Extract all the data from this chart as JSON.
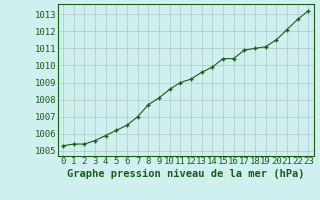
{
  "x": [
    0,
    1,
    2,
    3,
    4,
    5,
    6,
    7,
    8,
    9,
    10,
    11,
    12,
    13,
    14,
    15,
    16,
    17,
    18,
    19,
    20,
    21,
    22,
    23
  ],
  "y": [
    1005.3,
    1005.4,
    1005.4,
    1005.6,
    1005.9,
    1006.2,
    1006.5,
    1007.0,
    1007.7,
    1008.1,
    1008.6,
    1009.0,
    1009.2,
    1009.6,
    1009.9,
    1010.4,
    1010.4,
    1010.9,
    1011.0,
    1011.1,
    1011.5,
    1012.1,
    1012.7,
    1013.2
  ],
  "line_color": "#1a5c1a",
  "marker_color": "#1a5c1a",
  "bg_color": "#cff0ee",
  "grid_color": "#b0c8c8",
  "ylabel_ticks": [
    1005,
    1006,
    1007,
    1008,
    1009,
    1010,
    1011,
    1012,
    1013
  ],
  "xlabel": "Graphe pression niveau de la mer (hPa)",
  "xlim": [
    -0.5,
    23.5
  ],
  "ylim": [
    1004.7,
    1013.6
  ],
  "tick_fontsize": 6.5,
  "xlabel_fontsize": 7.5
}
